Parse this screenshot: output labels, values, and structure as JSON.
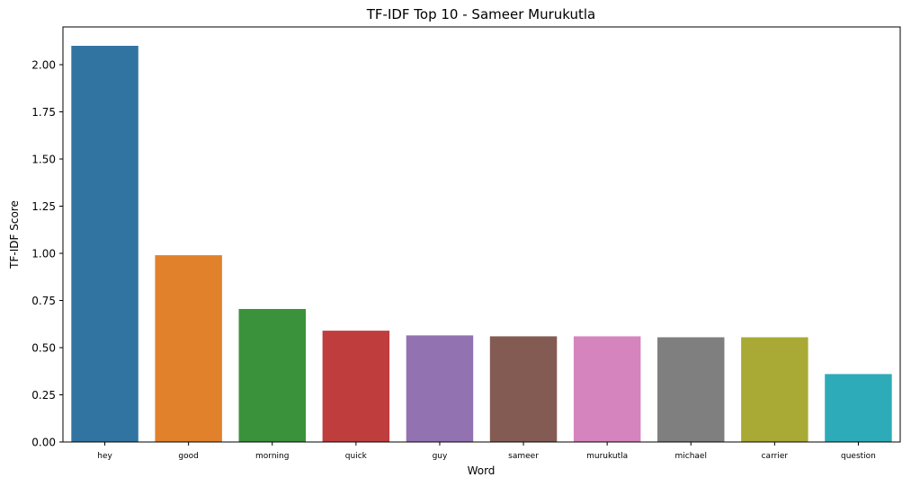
{
  "chart_data": {
    "type": "bar",
    "title": "TF-IDF Top 10 - Sameer Murukutla",
    "xlabel": "Word",
    "ylabel": "TF-IDF Score",
    "categories": [
      "hey",
      "good",
      "morning",
      "quick",
      "guy",
      "sameer",
      "murukutla",
      "michael",
      "carrier",
      "question"
    ],
    "values": [
      2.1,
      0.99,
      0.705,
      0.59,
      0.565,
      0.56,
      0.56,
      0.555,
      0.555,
      0.36
    ],
    "colors": [
      "#3274a1",
      "#e1812c",
      "#3a923a",
      "#c03d3e",
      "#9372b2",
      "#845b53",
      "#d684bd",
      "#7f7f7f",
      "#a9aa35",
      "#2eabb8"
    ],
    "ylim": [
      0,
      2.2
    ],
    "yticks": [
      0.0,
      0.25,
      0.5,
      0.75,
      1.0,
      1.25,
      1.5,
      1.75,
      2.0
    ],
    "ytick_labels": [
      "0.00",
      "0.25",
      "0.50",
      "0.75",
      "1.00",
      "1.25",
      "1.50",
      "1.75",
      "2.00"
    ],
    "grid": false,
    "legend": "none"
  }
}
